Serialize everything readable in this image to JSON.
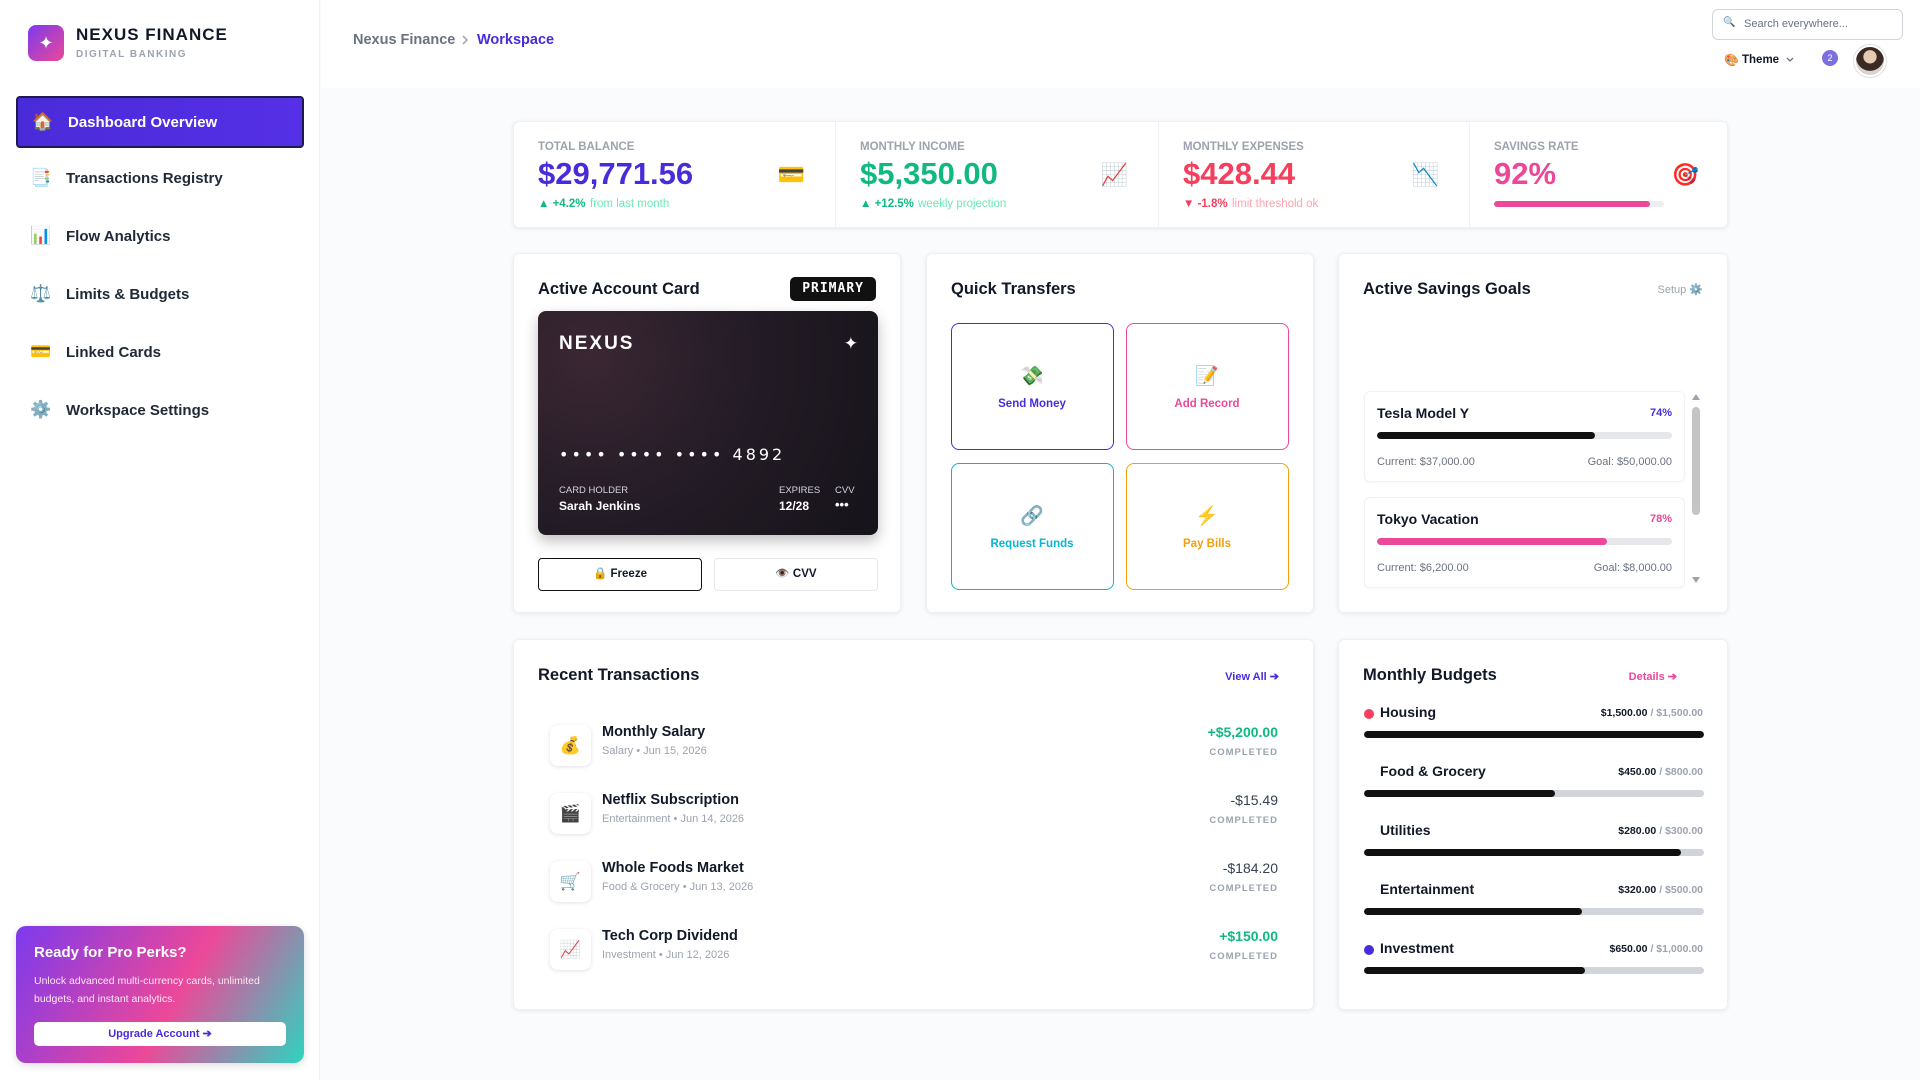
{
  "brand": {
    "icon": "✦",
    "name": "NEXUS FINANCE",
    "tagline": "DIGITAL BANKING"
  },
  "nav": [
    {
      "icon": "🏠",
      "label": "Dashboard Overview",
      "active": true
    },
    {
      "icon": "📑",
      "label": "Transactions Registry"
    },
    {
      "icon": "📊",
      "label": "Flow Analytics"
    },
    {
      "icon": "⚖️",
      "label": "Limits & Budgets"
    },
    {
      "icon": "💳",
      "label": "Linked Cards"
    },
    {
      "icon": "⚙️",
      "label": "Workspace Settings"
    }
  ],
  "promo": {
    "title": "Ready for Pro Perks?",
    "text": "Unlock advanced multi-currency cards, unlimited budgets, and instant analytics.",
    "button": "Upgrade Account ➔"
  },
  "header": {
    "breadcrumb": [
      "Nexus Finance",
      "Workspace"
    ],
    "search_icon": "🔍",
    "search_placeholder": "Search everywhere...",
    "theme_icon": "🎨",
    "theme": "Theme",
    "notifications": "2"
  },
  "stats": [
    {
      "label": "TOTAL BALANCE",
      "value": "$29,771.56",
      "icon": "💳",
      "change": "▲ +4.2%",
      "note": "from last month",
      "color": "#4a2bd9",
      "trend_color": "#10b981",
      "note_color": "#6ee7b7"
    },
    {
      "label": "MONTHLY INCOME",
      "value": "$5,350.00",
      "icon": "📈",
      "change": "▲ +12.5%",
      "note": "weekly projection",
      "color": "#10b981",
      "trend_color": "#10b981",
      "note_color": "#6ee7b7"
    },
    {
      "label": "MONTHLY EXPENSES",
      "value": "$428.44",
      "icon": "📉",
      "change": "▼ -1.8%",
      "note": "limit threshold ok",
      "color": "#f43f5e",
      "trend_color": "#f43f5e",
      "note_color": "#fda4af"
    },
    {
      "label": "SAVINGS RATE",
      "value": 92,
      "value_label": "92%",
      "icon": "🎯",
      "color": "#ec4899"
    }
  ],
  "card": {
    "title": "Active Account Card",
    "badge": "PRIMARY",
    "brand": "NEXUS",
    "chip": "✦",
    "number": "•••• •••• •••• 4892",
    "holder_label": "CARD HOLDER",
    "holder": "Sarah Jenkins",
    "expires_label": "EXPIRES",
    "expires": "12/28",
    "cvv_label": "CVV",
    "cvv": "•••",
    "buttons": [
      "🔒 Freeze",
      "👁️ CVV"
    ]
  },
  "quick_transfers": {
    "title": "Quick Transfers",
    "actions": [
      {
        "icon": "💸",
        "label": "Send Money",
        "color": "#4a2bd9"
      },
      {
        "icon": "📝",
        "label": "Add Record",
        "color": "#ec4899"
      },
      {
        "icon": "🔗",
        "label": "Request Funds",
        "color": "#06b6d4"
      },
      {
        "icon": "⚡",
        "label": "Pay Bills",
        "color": "#f59e0b"
      }
    ]
  },
  "savings_goals": {
    "title": "Active Savings Goals",
    "action": "Setup ⚙️",
    "goals": [
      {
        "name": "Tesla Model Y",
        "progress": 74,
        "progress_label": "74%",
        "current": "Current: $37,000.00",
        "goal": "Goal: $50,000.00",
        "color": "#111111",
        "label_color": "#4a2bd9"
      },
      {
        "name": "Tokyo Vacation",
        "progress": 78,
        "progress_label": "78%",
        "current": "Current: $6,200.00",
        "goal": "Goal: $8,000.00",
        "color": "#ec4899",
        "label_color": "#ec4899"
      }
    ]
  },
  "transactions": {
    "title": "Recent Transactions",
    "action": "View All ➔",
    "items": [
      {
        "icon": "💰",
        "name": "Monthly Salary",
        "meta": "Salary • Jun 15, 2026",
        "amount": "+$5,200.00",
        "status": "COMPLETED",
        "positive": true
      },
      {
        "icon": "🎬",
        "name": "Netflix Subscription",
        "meta": "Entertainment • Jun 14, 2026",
        "amount": "-$15.49",
        "status": "COMPLETED"
      },
      {
        "icon": "🛒",
        "name": "Whole Foods Market",
        "meta": "Food & Grocery • Jun 13, 2026",
        "amount": "-$184.20",
        "status": "COMPLETED"
      },
      {
        "icon": "📈",
        "name": "Tech Corp Dividend",
        "meta": "Investment • Jun 12, 2026",
        "amount": "+$150.00",
        "status": "COMPLETED",
        "positive": true
      }
    ]
  },
  "budgets": {
    "title": "Monthly Budgets",
    "action": "Details ➔",
    "items": [
      {
        "name": "Housing",
        "dot": "#f43f5e",
        "spent": 1500,
        "cap": 1500,
        "spent_label": "$1,500.00",
        "cap_label": "/ $1,500.00"
      },
      {
        "name": "Food & Grocery",
        "spent": 450,
        "cap": 800,
        "spent_label": "$450.00",
        "cap_label": "/ $800.00"
      },
      {
        "name": "Utilities",
        "spent": 280,
        "cap": 300,
        "spent_label": "$280.00",
        "cap_label": "/ $300.00"
      },
      {
        "name": "Entertainment",
        "spent": 320,
        "cap": 500,
        "spent_label": "$320.00",
        "cap_label": "/ $500.00"
      },
      {
        "name": "Investment",
        "dot": "#4a2bd9",
        "spent": 650,
        "cap": 1000,
        "spent_label": "$650.00",
        "cap_label": "/ $1,000.00"
      }
    ]
  }
}
